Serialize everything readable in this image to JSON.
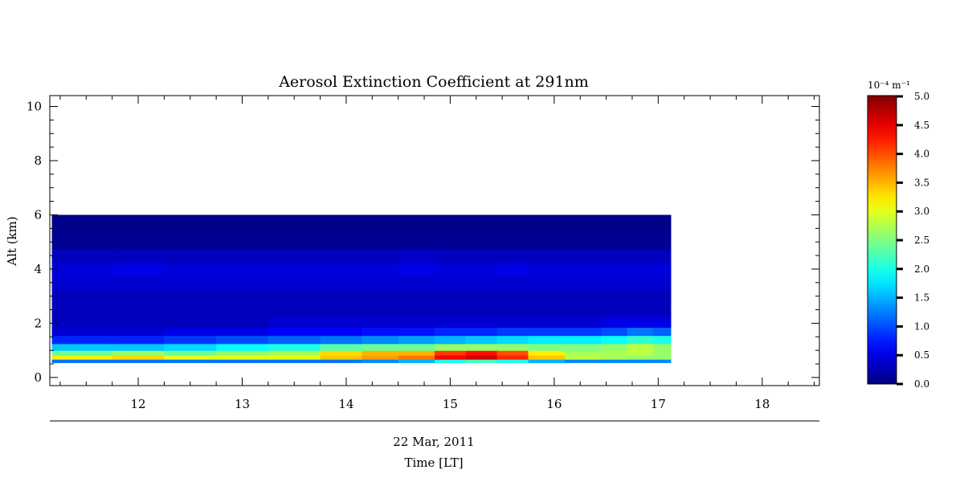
{
  "chart_data": {
    "type": "heatmap",
    "title": "Aerosol Extinction Coefficient at 291nm",
    "xlabel": "Time [LT]",
    "date_label": "22 Mar, 2011",
    "ylabel": "Alt (km)",
    "xlim": [
      11.15,
      18.55
    ],
    "ylim": [
      -0.3,
      10.4
    ],
    "x_ticks": [
      12,
      13,
      14,
      15,
      16,
      17,
      18
    ],
    "y_ticks": [
      0,
      2,
      4,
      6,
      8,
      10
    ],
    "data_extent": {
      "x_start": 11.17,
      "x_end": 17.12,
      "alt_bottom": 0.55,
      "alt_top": 6.0
    },
    "colorbar": {
      "unit_label": "10⁻⁴ m⁻¹",
      "range": [
        0.0,
        5.0
      ],
      "ticks": [
        "0.0",
        "0.5",
        "1.0",
        "1.5",
        "2.0",
        "2.5",
        "3.0",
        "3.5",
        "4.0",
        "4.5",
        "5.0"
      ],
      "colormap": "jet"
    },
    "times": [
      11.2,
      11.5,
      12.0,
      12.5,
      13.0,
      13.5,
      14.0,
      14.3,
      14.7,
      15.0,
      15.3,
      15.6,
      15.9,
      16.3,
      16.6,
      16.8,
      17.1
    ],
    "altitudes": [
      0.6,
      0.75,
      0.9,
      1.1,
      1.4,
      1.7,
      2.0,
      2.5,
      3.0,
      3.5,
      4.0,
      4.5,
      5.0,
      5.5,
      6.0
    ],
    "values": [
      [
        1.2,
        1.2,
        1.2,
        1.2,
        1.2,
        1.2,
        1.2,
        1.3,
        1.5,
        2.0,
        2.2,
        2.0,
        1.5,
        1.3,
        1.3,
        1.3,
        1.3
      ],
      [
        3.2,
        3.2,
        3.3,
        3.0,
        3.0,
        3.0,
        3.4,
        3.6,
        3.8,
        4.4,
        4.6,
        4.2,
        3.4,
        2.8,
        2.7,
        2.6,
        2.6
      ],
      [
        2.4,
        2.4,
        2.6,
        2.4,
        2.6,
        2.7,
        3.3,
        3.5,
        3.5,
        4.1,
        4.3,
        4.0,
        3.2,
        2.7,
        2.7,
        2.8,
        2.6
      ],
      [
        1.6,
        1.6,
        1.6,
        1.7,
        1.9,
        2.0,
        2.3,
        2.4,
        2.4,
        2.6,
        2.6,
        2.6,
        2.5,
        2.5,
        2.6,
        2.8,
        2.6
      ],
      [
        0.8,
        0.8,
        0.8,
        0.9,
        1.0,
        1.1,
        1.2,
        1.3,
        1.4,
        1.5,
        1.6,
        1.7,
        1.8,
        1.8,
        1.9,
        2.1,
        2.0
      ],
      [
        0.4,
        0.4,
        0.4,
        0.5,
        0.5,
        0.6,
        0.6,
        0.7,
        0.7,
        0.8,
        0.8,
        0.9,
        0.9,
        0.9,
        1.0,
        1.2,
        1.1
      ],
      [
        0.3,
        0.3,
        0.3,
        0.3,
        0.3,
        0.4,
        0.4,
        0.4,
        0.4,
        0.4,
        0.4,
        0.4,
        0.4,
        0.4,
        0.5,
        0.5,
        0.5
      ],
      [
        0.3,
        0.3,
        0.3,
        0.3,
        0.3,
        0.3,
        0.3,
        0.3,
        0.3,
        0.3,
        0.3,
        0.3,
        0.3,
        0.3,
        0.3,
        0.3,
        0.3
      ],
      [
        0.3,
        0.3,
        0.3,
        0.3,
        0.3,
        0.3,
        0.3,
        0.3,
        0.3,
        0.3,
        0.3,
        0.3,
        0.3,
        0.3,
        0.3,
        0.3,
        0.3
      ],
      [
        0.4,
        0.4,
        0.4,
        0.4,
        0.4,
        0.4,
        0.4,
        0.4,
        0.4,
        0.4,
        0.4,
        0.4,
        0.4,
        0.4,
        0.4,
        0.4,
        0.4
      ],
      [
        0.45,
        0.45,
        0.5,
        0.45,
        0.45,
        0.45,
        0.45,
        0.45,
        0.5,
        0.45,
        0.45,
        0.5,
        0.45,
        0.45,
        0.45,
        0.45,
        0.45
      ],
      [
        0.3,
        0.3,
        0.3,
        0.3,
        0.3,
        0.3,
        0.3,
        0.3,
        0.35,
        0.3,
        0.3,
        0.3,
        0.3,
        0.3,
        0.3,
        0.3,
        0.3
      ],
      [
        0.1,
        0.1,
        0.1,
        0.1,
        0.1,
        0.1,
        0.1,
        0.1,
        0.1,
        0.1,
        0.1,
        0.1,
        0.1,
        0.1,
        0.1,
        0.1,
        0.1
      ],
      [
        0.05,
        0.05,
        0.05,
        0.05,
        0.05,
        0.05,
        0.05,
        0.05,
        0.05,
        0.05,
        0.05,
        0.05,
        0.05,
        0.05,
        0.05,
        0.05,
        0.05
      ],
      [
        0.05,
        0.05,
        0.05,
        0.05,
        0.05,
        0.05,
        0.05,
        0.05,
        0.05,
        0.05,
        0.05,
        0.05,
        0.05,
        0.05,
        0.05,
        0.05,
        0.05
      ]
    ]
  }
}
